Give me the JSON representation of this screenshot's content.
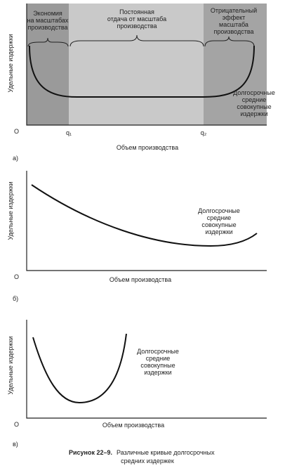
{
  "panels": [
    {
      "y_axis_label": "Удельные издержки",
      "x_axis_label": "Объем производства",
      "origin": "O",
      "panel_label": "а)",
      "regions": [
        [
          "Экономия",
          "на масштабах",
          "производства"
        ],
        [
          "Постоянная",
          "отдача от масштаба",
          "производства"
        ],
        [
          "Отрицательный",
          "эффект",
          "масштаба",
          "производства"
        ]
      ],
      "x_marks": [
        "q₁",
        "q₂"
      ],
      "curve_label": [
        "Долгосрочные",
        "средние",
        "совокупные",
        "издержки"
      ]
    },
    {
      "y_axis_label": "Удельные издержки",
      "x_axis_label": "Объем производства",
      "origin": "O",
      "panel_label": "б)",
      "curve_label": [
        "Долгосрочные",
        "средние",
        "совокупные",
        "издержки"
      ]
    },
    {
      "y_axis_label": "Удельные издержки",
      "x_axis_label": "Объем производства",
      "origin": "O",
      "panel_label": "в)",
      "curve_label": [
        "Долгосрочные",
        "средние",
        "совокупные",
        "издержки"
      ]
    }
  ],
  "caption": {
    "label": "Рисунок 22–9.",
    "lines": [
      "Различные кривые долгосрочных",
      "средних издержек"
    ]
  }
}
